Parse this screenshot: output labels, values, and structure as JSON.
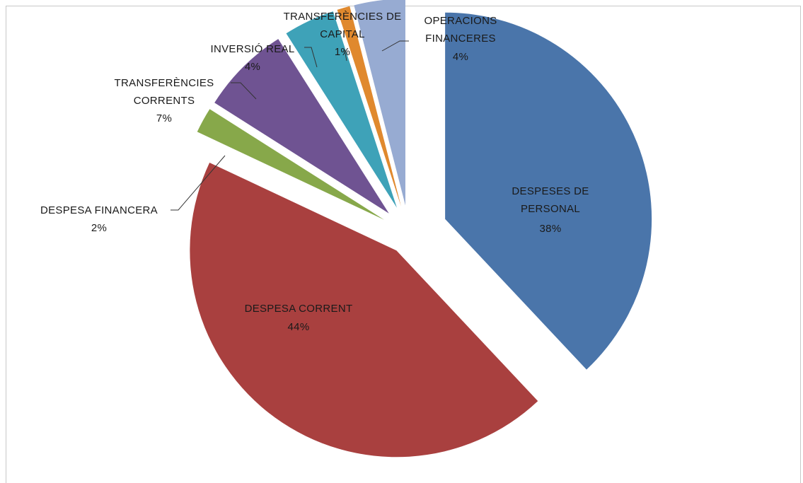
{
  "chart_data": {
    "type": "pie",
    "title": "",
    "slices": [
      {
        "label": "DESPESES DE PERSONAL",
        "value": 38,
        "display": "38%",
        "color": "#4a75aa"
      },
      {
        "label": "DESPESA CORRENT",
        "value": 44,
        "display": "44%",
        "color": "#a9403f"
      },
      {
        "label": "DESPESA FINANCERA",
        "value": 2,
        "display": "2%",
        "color": "#87a84a"
      },
      {
        "label": "TRANSFERÈNCIES CORRENTS",
        "value": 7,
        "display": "7%",
        "color": "#6f5392"
      },
      {
        "label": "INVERSIÓ REAL",
        "value": 4,
        "display": "4%",
        "color": "#3ea2b8"
      },
      {
        "label": "TRANSFERÈNCIES DE CAPITAL",
        "value": 1,
        "display": "1%",
        "color": "#e0892e"
      },
      {
        "label": "OPERACIONS FINANCERES",
        "value": 4,
        "display": "4%",
        "color": "#97abd2"
      }
    ],
    "legend": "none",
    "labels": {
      "personal": [
        "DESPESES DE",
        "PERSONAL",
        "38%"
      ],
      "corrent": [
        "DESPESA CORRENT",
        "44%"
      ],
      "financera": [
        "DESPESA FINANCERA",
        "2%"
      ],
      "transf_corrents": [
        "TRANSFERÈNCIES",
        "CORRENTS",
        "7%"
      ],
      "inversio": [
        "INVERSIÓ REAL",
        "4%"
      ],
      "transf_capital": [
        "TRANSFERÈNCIES DE",
        "CAPITAL",
        "1%"
      ],
      "operacions": [
        "OPERACIONS",
        "FINANCERES",
        "4%"
      ]
    }
  }
}
